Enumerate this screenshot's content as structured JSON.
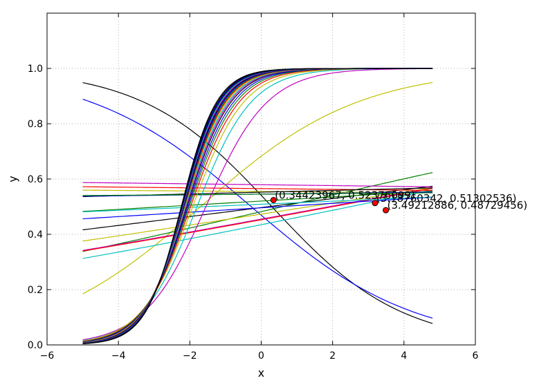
{
  "chart_data": {
    "type": "line",
    "title": "",
    "xlabel": "x",
    "ylabel": "y",
    "xlim": [
      -6,
      6
    ],
    "ylim": [
      0.0,
      1.2
    ],
    "x_ticks": [
      -6,
      -4,
      -2,
      0,
      2,
      4,
      6
    ],
    "y_ticks": [
      0.0,
      0.2,
      0.4,
      0.6,
      0.8,
      1.0
    ],
    "x_tick_labels": [
      "−6",
      "−4",
      "−2",
      "0",
      "2",
      "4",
      "6"
    ],
    "y_tick_labels": [
      "0.0",
      "0.2",
      "0.4",
      "0.6",
      "0.8",
      "1.0"
    ],
    "grid": true,
    "x_range": [
      -5.0,
      4.8
    ],
    "series_model": "logistic",
    "series": [
      {
        "color": "#000000",
        "k": -0.55,
        "x0": 0.3
      },
      {
        "color": "#0000ff",
        "k": -0.44,
        "x0": -0.28
      },
      {
        "color": "#bfbf00",
        "k": 0.45,
        "x0": -1.7
      },
      {
        "color": "#00bfbf",
        "k": 0.105,
        "x0": 2.5
      },
      {
        "color": "#008000",
        "k": 0.12,
        "x0": 0.6
      },
      {
        "color": "#bf00bf",
        "k": 0.095,
        "x0": 1.9
      },
      {
        "color": "#ff0000",
        "k": 0.095,
        "x0": 2.0
      },
      {
        "color": "#bfbf00",
        "k": 0.08,
        "x0": 1.35
      },
      {
        "color": "#000000",
        "k": 0.065,
        "x0": 0.2
      },
      {
        "color": "#0000ff",
        "k": 0.032,
        "x0": 0.5
      },
      {
        "color": "#008000",
        "k": 0.03,
        "x0": -2.7
      },
      {
        "color": "#00bfbf",
        "k": 0.022,
        "x0": -1.6
      },
      {
        "color": "#bf00bf",
        "k": -0.0065,
        "x0": 49.3
      },
      {
        "color": "#ff0000",
        "k": -0.0055,
        "x0": 47.8
      },
      {
        "color": "#bfbf00",
        "k": -0.004,
        "x0": 55.0
      },
      {
        "color": "#000000",
        "k": 0.013,
        "x0": -16.2
      },
      {
        "color": "#0000ff",
        "k": 0.006,
        "x0": -30.4
      },
      {
        "color": "#008000",
        "k": 0.004,
        "x0": -45.4
      },
      {
        "color": "#bf00bf",
        "k": 1.15,
        "x0": -1.55
      },
      {
        "color": "#00bfbf",
        "k": 1.3,
        "x0": -1.8
      },
      {
        "color": "#bfbf00",
        "k": 1.38,
        "x0": -1.92
      },
      {
        "color": "#ff0000",
        "k": 1.45,
        "x0": -1.98
      },
      {
        "color": "#008000",
        "k": 1.5,
        "x0": -2.02
      },
      {
        "color": "#0000ff",
        "k": 1.55,
        "x0": -2.05
      },
      {
        "color": "#000000",
        "k": 1.6,
        "x0": -2.08
      },
      {
        "color": "#bf00bf",
        "k": 1.63,
        "x0": -2.1
      },
      {
        "color": "#00bfbf",
        "k": 1.66,
        "x0": -2.12
      },
      {
        "color": "#bfbf00",
        "k": 1.69,
        "x0": -2.14
      },
      {
        "color": "#ff0000",
        "k": 1.72,
        "x0": -2.15
      },
      {
        "color": "#008000",
        "k": 1.75,
        "x0": -2.16
      },
      {
        "color": "#0000ff",
        "k": 1.78,
        "x0": -2.17
      },
      {
        "color": "#000000",
        "k": 1.81,
        "x0": -2.18
      },
      {
        "color": "#bf00bf",
        "k": 1.84,
        "x0": -2.19
      },
      {
        "color": "#00bfbf",
        "k": 1.87,
        "x0": -2.2
      },
      {
        "color": "#000000",
        "k": 1.9,
        "x0": -2.21
      },
      {
        "color": "#0000ff",
        "k": 1.93,
        "x0": -2.22
      },
      {
        "color": "#000000",
        "k": 1.96,
        "x0": -2.23
      },
      {
        "color": "#000000",
        "k": 2.0,
        "x0": -2.24
      }
    ],
    "points": [
      {
        "x": 0.34423967,
        "y": 0.52376099,
        "label": "(0.34423967, 0.52376099)"
      },
      {
        "x": 3.18760342,
        "y": 0.51302536,
        "label": "(3.18760342, 0.51302536)"
      },
      {
        "x": 3.49212886,
        "y": 0.48729456,
        "label": "(3.49212886, 0.48729456)"
      }
    ],
    "point_color": "#ff0000"
  }
}
